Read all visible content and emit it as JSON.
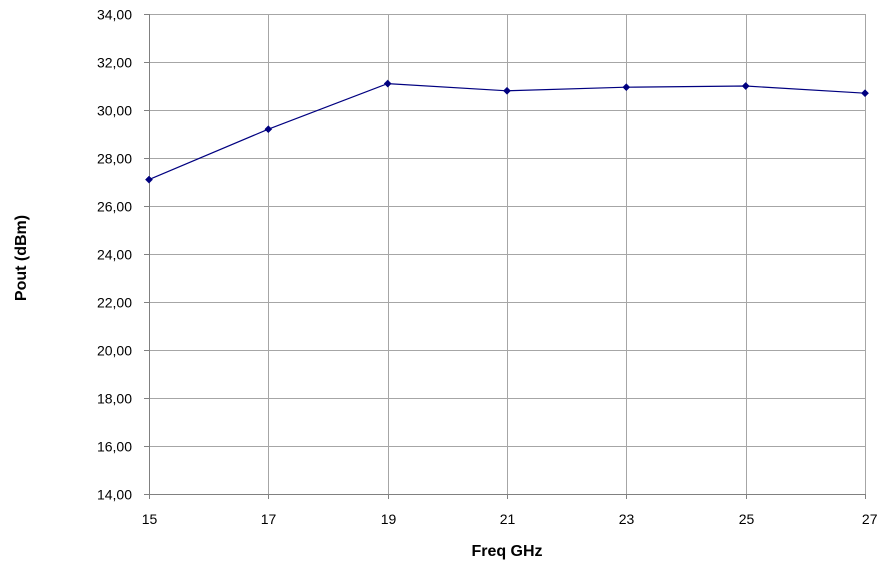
{
  "chart_data": {
    "type": "line",
    "title": "",
    "xlabel": "Freq GHz",
    "ylabel": "Pout (dBm)",
    "x": [
      15,
      17,
      19,
      21,
      23,
      25,
      27
    ],
    "x_ticks": [
      "15",
      "17",
      "19",
      "21",
      "23",
      "25",
      "27"
    ],
    "xlim": [
      15,
      27
    ],
    "ylim": [
      14,
      34
    ],
    "y_ticks": [
      "14,00",
      "16,00",
      "18,00",
      "20,00",
      "22,00",
      "24,00",
      "26,00",
      "28,00",
      "30,00",
      "32,00",
      "34,00"
    ],
    "grid": true,
    "legend": "none",
    "series": [
      {
        "values": [
          27.1,
          29.2,
          31.1,
          30.8,
          30.95,
          31.0,
          30.7
        ],
        "color": "#000080",
        "marker": "diamond"
      }
    ]
  }
}
